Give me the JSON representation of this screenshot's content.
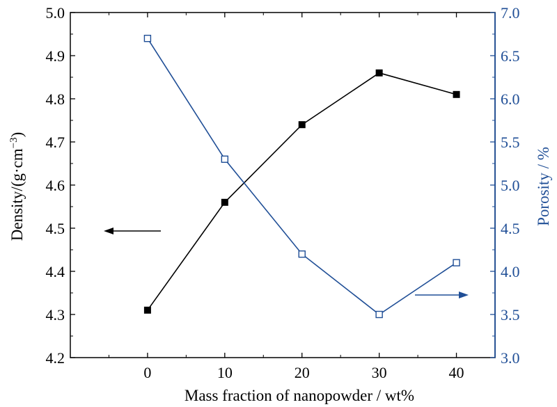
{
  "chart_data": {
    "type": "line",
    "x": [
      0,
      10,
      20,
      30,
      40
    ],
    "xlim": [
      -10,
      45
    ],
    "x_ticks": [
      0,
      10,
      20,
      30,
      40
    ],
    "xlabel": "Mass fraction of nanopowder / wt%",
    "ylabel_left": "Density/(g·cm⁻³)",
    "ylabel_left_base": "Density/(g·cm",
    "ylabel_left_sup": "−3",
    "ylabel_left_close": ")",
    "ylabel_right": "Porosity / %",
    "ylim_left": [
      4.2,
      5.0
    ],
    "ylim_right": [
      3.0,
      7.0
    ],
    "y_ticks_left": [
      "4.2",
      "4.3",
      "4.4",
      "4.5",
      "4.6",
      "4.7",
      "4.8",
      "4.9",
      "5.0"
    ],
    "y_ticks_right": [
      "3.0",
      "3.5",
      "4.0",
      "4.5",
      "5.0",
      "5.5",
      "6.0",
      "6.5",
      "7.0"
    ],
    "series": [
      {
        "axis": "left",
        "values": [
          4.31,
          4.56,
          4.74,
          4.86,
          4.81
        ],
        "color": "#000000",
        "marker": "filled-square"
      },
      {
        "axis": "right",
        "values": [
          6.7,
          5.3,
          4.2,
          3.5,
          4.1
        ],
        "color": "#1f4e96",
        "marker": "open-square"
      }
    ],
    "annotations": [
      {
        "type": "arrow",
        "points_to": "left-axis",
        "color": "#000000"
      },
      {
        "type": "arrow",
        "points_to": "right-axis",
        "color": "#1f4e96"
      }
    ],
    "grid": false
  }
}
